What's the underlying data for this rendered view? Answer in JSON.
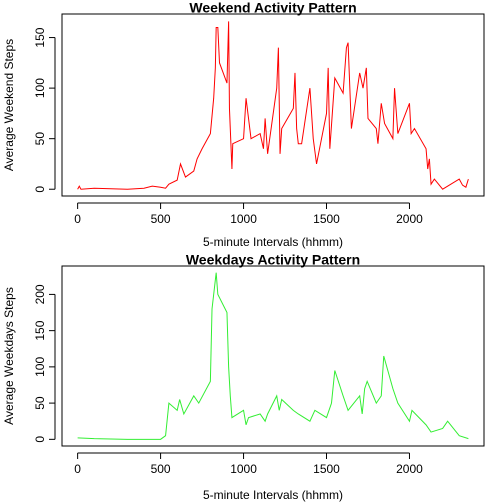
{
  "chart_data": [
    {
      "type": "line",
      "title": "Weekend Activity Pattern",
      "xlabel": "5-minute Intervals (hhmm)",
      "ylabel": "Average Weekend Steps",
      "xlim": [
        -94.2,
        2449.2
      ],
      "ylim": [
        -6.7,
        173.3
      ],
      "xticks": [
        0,
        500,
        1000,
        1500,
        2000
      ],
      "yticks": [
        0,
        50,
        100,
        150
      ],
      "x": [
        0,
        10,
        20,
        100,
        300,
        400,
        450,
        500,
        530,
        550,
        600,
        620,
        650,
        700,
        720,
        750,
        800,
        820,
        830,
        835,
        845,
        855,
        900,
        910,
        915,
        930,
        935,
        1000,
        1015,
        1030,
        1045,
        1100,
        1120,
        1130,
        1145,
        1200,
        1210,
        1220,
        1230,
        1300,
        1310,
        1320,
        1330,
        1350,
        1400,
        1420,
        1440,
        1500,
        1510,
        1520,
        1550,
        1600,
        1620,
        1630,
        1650,
        1700,
        1720,
        1740,
        1750,
        1800,
        1810,
        1830,
        1850,
        1900,
        1910,
        1930,
        2000,
        2010,
        2030,
        2100,
        2110,
        2120,
        2130,
        2150,
        2200,
        2300,
        2320,
        2340,
        2355
      ],
      "series": [
        {
          "name": "Weekend",
          "color": "#ff0000",
          "values": [
            0,
            3,
            0,
            1,
            0,
            1,
            3,
            2,
            1,
            5,
            9,
            25,
            12,
            18,
            30,
            40,
            55,
            90,
            120,
            160,
            160,
            125,
            105,
            166,
            80,
            20,
            45,
            50,
            90,
            70,
            50,
            55,
            40,
            70,
            35,
            100,
            140,
            35,
            60,
            80,
            115,
            60,
            45,
            45,
            100,
            50,
            25,
            75,
            120,
            40,
            110,
            95,
            140,
            145,
            60,
            115,
            100,
            120,
            70,
            60,
            45,
            85,
            65,
            50,
            100,
            55,
            85,
            55,
            60,
            40,
            20,
            30,
            5,
            10,
            0,
            10,
            4,
            2,
            10
          ]
        }
      ]
    },
    {
      "type": "line",
      "title": "Weekdays Activity Pattern",
      "xlabel": "5-minute Intervals (hhmm)",
      "ylabel": "Average Weekdays Steps",
      "xlim": [
        -94.2,
        2449.2
      ],
      "ylim": [
        -9.2,
        239.2
      ],
      "xticks": [
        0,
        500,
        1000,
        1500,
        2000
      ],
      "yticks": [
        0,
        50,
        100,
        150,
        200
      ],
      "x": [
        0,
        100,
        300,
        500,
        530,
        550,
        600,
        615,
        640,
        700,
        730,
        800,
        810,
        820,
        835,
        845,
        900,
        910,
        920,
        930,
        1000,
        1015,
        1030,
        1100,
        1130,
        1145,
        1200,
        1215,
        1230,
        1300,
        1330,
        1400,
        1430,
        1500,
        1530,
        1550,
        1600,
        1630,
        1700,
        1715,
        1730,
        1745,
        1800,
        1830,
        1845,
        1900,
        1930,
        2000,
        2015,
        2100,
        2130,
        2200,
        2230,
        2300,
        2355
      ],
      "series": [
        {
          "name": "Weekdays",
          "color": "#33ee33",
          "values": [
            2,
            1,
            0,
            0,
            5,
            50,
            40,
            55,
            35,
            60,
            50,
            80,
            180,
            200,
            230,
            200,
            175,
            100,
            60,
            30,
            40,
            20,
            30,
            35,
            25,
            35,
            60,
            40,
            55,
            40,
            35,
            25,
            40,
            30,
            50,
            95,
            60,
            40,
            60,
            35,
            70,
            80,
            50,
            60,
            115,
            70,
            50,
            25,
            40,
            20,
            10,
            15,
            25,
            5,
            1
          ]
        }
      ]
    }
  ]
}
